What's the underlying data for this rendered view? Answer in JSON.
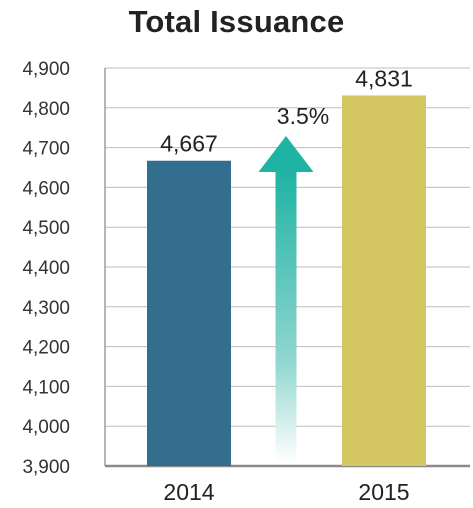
{
  "chart_data": {
    "type": "bar",
    "title": "Total Issuance",
    "xlabel": "",
    "ylabel": "",
    "categories": [
      "2014",
      "2015"
    ],
    "values": [
      4667,
      4831
    ],
    "value_labels": [
      "4,667",
      "4,831"
    ],
    "ylim": [
      3900,
      4900
    ],
    "yticks": [
      3900,
      4000,
      4100,
      4200,
      4300,
      4400,
      4500,
      4600,
      4700,
      4800,
      4900
    ],
    "ytick_labels": [
      "3,900",
      "4,000",
      "4,100",
      "4,200",
      "4,300",
      "4,400",
      "4,500",
      "4,600",
      "4,700",
      "4,800",
      "4,900"
    ],
    "grid": true,
    "legend": "none",
    "bar_colors": [
      "#336e8e",
      "#d4c662"
    ],
    "growth_annotation": {
      "text": "3.5%",
      "arrow_color": "#1fb3a3"
    }
  }
}
